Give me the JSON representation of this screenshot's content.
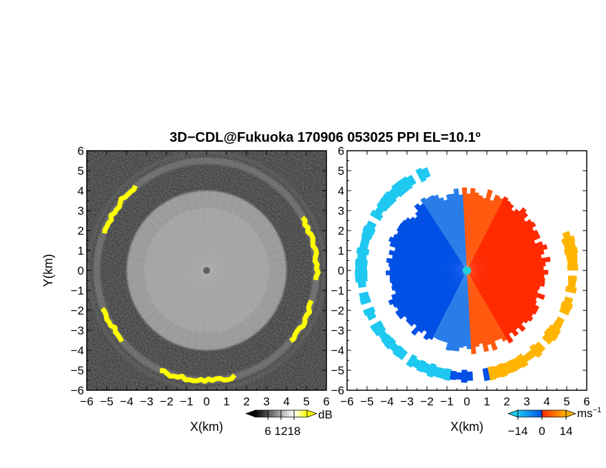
{
  "chart_data": [
    {
      "type": "heatmap",
      "panel": "reflectivity",
      "title": "3D−CDL@Fukuoka 170906 053025 PPI EL=10.1º",
      "xlabel": "X(km)",
      "ylabel": "Y(km)",
      "xlim": [
        -6,
        6
      ],
      "ylim": [
        -6,
        6
      ],
      "x_ticks": [
        "−6",
        "−5",
        "−4",
        "−3",
        "−2",
        "−1",
        "0",
        "1",
        "2",
        "3",
        "4",
        "5",
        "6"
      ],
      "y_ticks": [
        "6",
        "5",
        "4",
        "3",
        "2",
        "1",
        "0",
        "−1",
        "−2",
        "−3",
        "−4",
        "−5",
        "−6"
      ],
      "colorbar": {
        "unit": "dB",
        "ticks": [
          "6",
          "12",
          "18"
        ],
        "range": [
          0,
          24
        ],
        "colors": [
          "#000000",
          "#ffffff",
          "#ffff00"
        ]
      },
      "features": {
        "radar_center": [
          0,
          0
        ],
        "bright_disc_radius_km": 4.0,
        "ring_radius_km": 5.5,
        "high_echo_arcs_deg": [
          [
            -115,
            -75
          ],
          [
            -40,
            -15
          ],
          [
            -5,
            30
          ],
          [
            130,
            160
          ],
          [
            200,
            220
          ]
        ]
      }
    },
    {
      "type": "heatmap",
      "panel": "doppler_velocity",
      "xlabel": "X(km)",
      "xlim": [
        -6,
        6
      ],
      "ylim": [
        -6,
        6
      ],
      "x_ticks": [
        "−6",
        "−5",
        "−4",
        "−3",
        "−2",
        "−1",
        "0",
        "1",
        "2",
        "3",
        "4",
        "5",
        "6"
      ],
      "y_ticks": [
        "6",
        "5",
        "4",
        "3",
        "2",
        "1",
        "0",
        "−1",
        "−2",
        "−3",
        "−4",
        "−5",
        "−6"
      ],
      "colorbar": {
        "unit": "ms",
        "unit_exp": "−1",
        "ticks": [
          "−14",
          "0",
          "14"
        ],
        "range": [
          -14,
          14
        ],
        "colors": [
          "#1ec8f0",
          "#0050e6",
          "#ff2a00",
          "#ffb400"
        ]
      },
      "features": {
        "radar_center": [
          0,
          0
        ],
        "center_marker_color": "#1ed2dc",
        "echo_radius_km": 4.0,
        "ring_radius_km": 5.3
      }
    }
  ]
}
